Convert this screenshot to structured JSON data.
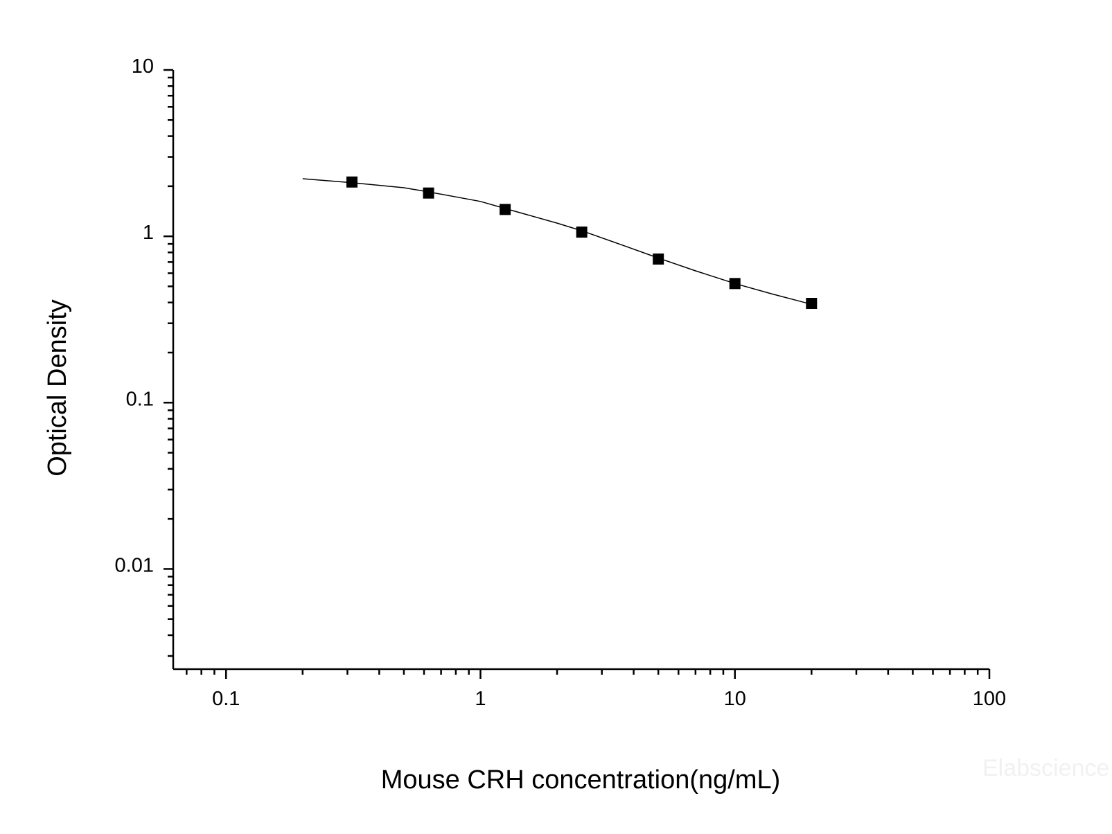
{
  "chart_data": {
    "type": "scatter",
    "title": "",
    "xlabel": "Mouse CRH concentration(ng/mL)",
    "ylabel": "Optical Density",
    "x_scale": "log",
    "y_scale": "log",
    "xlim": [
      0.062,
      100
    ],
    "ylim": [
      0.0025,
      10
    ],
    "x_ticks": [
      {
        "value": 0.1,
        "label": "0.1"
      },
      {
        "value": 1,
        "label": "1"
      },
      {
        "value": 10,
        "label": "10"
      },
      {
        "value": 100,
        "label": "100"
      }
    ],
    "y_ticks": [
      {
        "value": 0.01,
        "label": "0.01"
      },
      {
        "value": 0.1,
        "label": "0.1"
      },
      {
        "value": 1,
        "label": "1"
      },
      {
        "value": 10,
        "label": "10"
      }
    ],
    "grid": false,
    "legend": "none",
    "series": [
      {
        "x": [
          0.3125,
          0.625,
          1.25,
          2.5,
          5,
          10,
          20
        ],
        "y": [
          2.12,
          1.82,
          1.45,
          1.06,
          0.73,
          0.52,
          0.395
        ],
        "marker": "square",
        "color": "#000000"
      }
    ],
    "fit_curve": {
      "x": [
        0.2,
        0.3125,
        0.5,
        0.625,
        1,
        1.25,
        2,
        2.5,
        3.5,
        5,
        7,
        10,
        14,
        20
      ],
      "y": [
        2.22,
        2.1,
        1.96,
        1.85,
        1.62,
        1.47,
        1.2,
        1.08,
        0.9,
        0.74,
        0.62,
        0.52,
        0.45,
        0.39
      ],
      "color": "#000000"
    },
    "watermark": "Elabscience"
  }
}
